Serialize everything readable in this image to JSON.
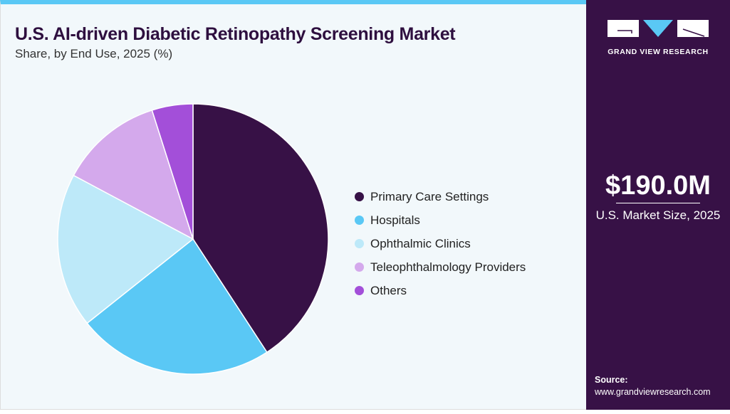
{
  "header": {
    "title": "U.S. AI-driven Diabetic Retinopathy Screening Market",
    "subtitle": "Share, by End Use, 2025 (%)"
  },
  "chart_data": {
    "type": "pie",
    "title": "U.S. AI-driven Diabetic Retinopathy Screening Market",
    "subtitle": "Share, by End Use, 2025 (%)",
    "legend": "right",
    "start": "12 o'clock, clockwise",
    "categories": [
      "Primary Care Settings",
      "Hospitals",
      "Ophthalmic Clinics",
      "Teleophthalmology Providers",
      "Others"
    ],
    "values": [
      40.8,
      23.5,
      18.5,
      12.3,
      4.9
    ],
    "colors": [
      "#371146",
      "#5ac8f5",
      "#bde9f9",
      "#d4a9ec",
      "#a34fd9"
    ]
  },
  "sidebar": {
    "logo_text": "GRAND VIEW RESEARCH",
    "market_size": "$190.0M",
    "market_label": "U.S. Market Size, 2025",
    "source_label": "Source:",
    "source_url": "www.grandviewresearch.com"
  }
}
